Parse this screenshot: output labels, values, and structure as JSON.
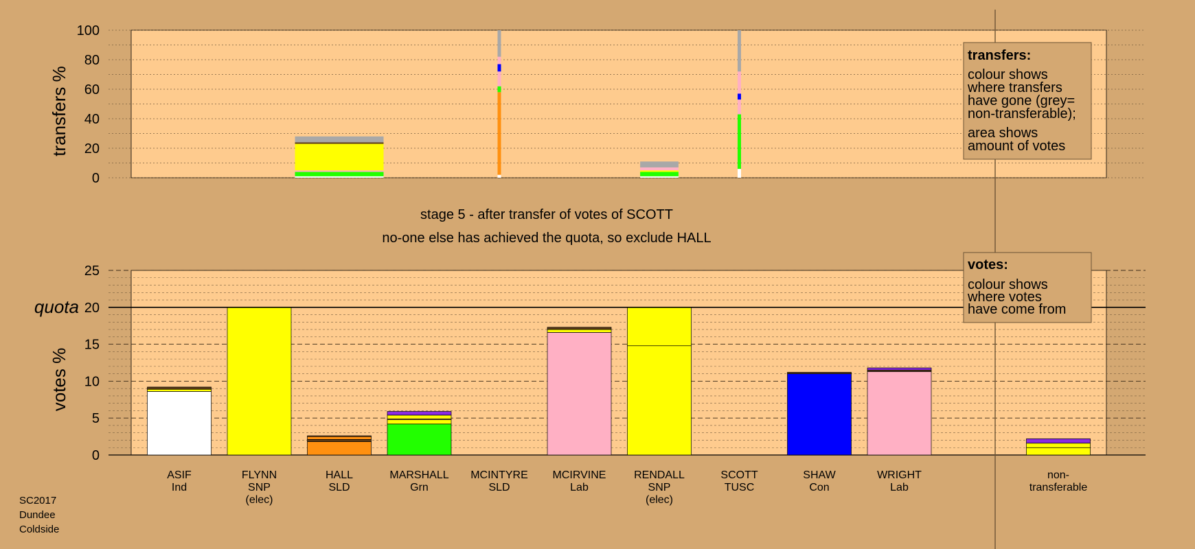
{
  "colors": {
    "background": "#d4a872",
    "panel": "#fecb8e",
    "Ind": "#ffffff",
    "SNP": "#ffff00",
    "SLD": "#ff9010",
    "Grn": "#22ff00",
    "Lab": "#ffb0c4",
    "Con": "#0000ff",
    "TUSC": "#8a2be2",
    "dark": "#5a3a18",
    "nontransferable": "#a8a8a8"
  },
  "stage_line1": "stage 5 - after transfer of votes of SCOTT",
  "stage_line2": "no-one else has achieved the quota, so exclude HALL",
  "footer": [
    "SC2017",
    "Dundee",
    "Coldside"
  ],
  "legends": {
    "transfers": {
      "title": "transfers:",
      "lines": [
        "colour shows",
        "where transfers",
        "have gone (grey=",
        "non-transferable);",
        "area shows",
        "amount of votes"
      ]
    },
    "votes": {
      "title": "votes:",
      "lines": [
        "colour shows",
        "where votes",
        "have come from"
      ]
    }
  },
  "chart_data": [
    {
      "type": "bar",
      "ylabel": "transfers %",
      "ylim": [
        0,
        100
      ],
      "yticks": [
        "100",
        "80",
        "60",
        "40",
        "20",
        "0"
      ],
      "columns": [
        {
          "candidate": "HALL",
          "width_share": 1.0,
          "segments": [
            {
              "color": "white",
              "value": 1
            },
            {
              "color": "Grn",
              "value": 3
            },
            {
              "color": "Lab",
              "value": 1
            },
            {
              "color": "SNP",
              "value": 18
            },
            {
              "color": "dark",
              "value": 1
            },
            {
              "color": "nontransferable",
              "value": 4
            }
          ]
        },
        {
          "candidate": "MCINTYRE",
          "width_share": 0.05,
          "segments": [
            {
              "color": "white",
              "value": 2
            },
            {
              "color": "SLD",
              "value": 56
            },
            {
              "color": "Grn",
              "value": 4
            },
            {
              "color": "Lab",
              "value": 10
            },
            {
              "color": "Con",
              "value": 5
            },
            {
              "color": "Lab",
              "value": 5
            },
            {
              "color": "nontransferable",
              "value": 18
            }
          ]
        },
        {
          "candidate": "RENDALL",
          "width_share": 0.6,
          "segments": [
            {
              "color": "white",
              "value": 1
            },
            {
              "color": "Grn",
              "value": 3
            },
            {
              "color": "SNP",
              "value": 1
            },
            {
              "color": "Lab",
              "value": 2
            },
            {
              "color": "nontransferable",
              "value": 4
            }
          ]
        },
        {
          "candidate": "SCOTT",
          "width_share": 0.05,
          "segments": [
            {
              "color": "white",
              "value": 6
            },
            {
              "color": "Grn",
              "value": 37
            },
            {
              "color": "Lab",
              "value": 10
            },
            {
              "color": "Con",
              "value": 4
            },
            {
              "color": "Lab",
              "value": 15
            },
            {
              "color": "nontransferable",
              "value": 28
            }
          ]
        }
      ]
    },
    {
      "type": "bar",
      "ylabel": "votes %",
      "ylim": [
        0,
        25
      ],
      "yticks": [
        "25",
        "20",
        "15",
        "10",
        "5",
        "0"
      ],
      "quota": 20,
      "quota_label": "quota",
      "categories": [
        "ASIF",
        "FLYNN",
        "HALL",
        "MARSHALL",
        "MCINTYRE",
        "MCIRVINE",
        "RENDALL",
        "SCOTT",
        "SHAW",
        "WRIGHT",
        "non-transferable"
      ],
      "candidates": [
        {
          "name": "ASIF",
          "party": "Ind",
          "note": "",
          "segments": [
            {
              "color": "Ind",
              "value": 8.6
            },
            {
              "color": "SNP",
              "value": 0.3
            },
            {
              "color": "dark",
              "value": 0.3
            }
          ]
        },
        {
          "name": "FLYNN",
          "party": "SNP",
          "note": "(elec)",
          "segments": [
            {
              "color": "SNP",
              "value": 20
            }
          ]
        },
        {
          "name": "HALL",
          "party": "SLD",
          "note": "",
          "segments": [
            {
              "color": "SLD",
              "value": 1.8
            },
            {
              "color": "dark",
              "value": 0.3
            },
            {
              "color": "SLD",
              "value": 0.4
            },
            {
              "color": "dark",
              "value": 0.1
            }
          ]
        },
        {
          "name": "MARSHALL",
          "party": "Grn",
          "note": "",
          "segments": [
            {
              "color": "Grn",
              "value": 4.2
            },
            {
              "color": "SNP",
              "value": 0.6
            },
            {
              "color": "Lab",
              "value": 0.1
            },
            {
              "color": "SNP",
              "value": 0.5
            },
            {
              "color": "TUSC",
              "value": 0.5
            }
          ]
        },
        {
          "name": "MCINTYRE",
          "party": "SLD",
          "note": "",
          "segments": []
        },
        {
          "name": "MCIRVINE",
          "party": "Lab",
          "note": "",
          "segments": [
            {
              "color": "Lab",
              "value": 16.6
            },
            {
              "color": "SNP",
              "value": 0.4
            },
            {
              "color": "dark",
              "value": 0.3
            }
          ]
        },
        {
          "name": "RENDALL",
          "party": "SNP",
          "note": "(elec)",
          "segments": [
            {
              "color": "SNP",
              "value": 14.8
            },
            {
              "color": "SNP",
              "value": 5.2
            }
          ]
        },
        {
          "name": "SCOTT",
          "party": "TUSC",
          "note": "",
          "segments": []
        },
        {
          "name": "SHAW",
          "party": "Con",
          "note": "",
          "segments": [
            {
              "color": "Con",
              "value": 11.0
            },
            {
              "color": "dark",
              "value": 0.2
            }
          ]
        },
        {
          "name": "WRIGHT",
          "party": "Lab",
          "note": "",
          "segments": [
            {
              "color": "Lab",
              "value": 11.3
            },
            {
              "color": "dark",
              "value": 0.2
            },
            {
              "color": "TUSC",
              "value": 0.3
            }
          ]
        },
        {
          "name": "non-",
          "party": "transferable",
          "note": "",
          "segments": [
            {
              "color": "SNP",
              "value": 1.0
            },
            {
              "color": "SNP",
              "value": 0.6
            },
            {
              "color": "TUSC",
              "value": 0.6
            }
          ]
        }
      ]
    }
  ]
}
